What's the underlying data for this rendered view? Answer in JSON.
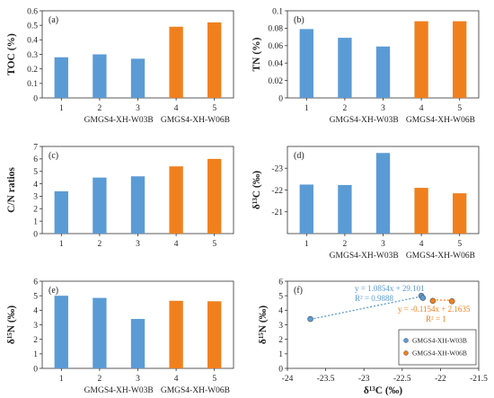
{
  "colors": {
    "blue": "#5b9bd5",
    "orange": "#f0801e",
    "axis": "#333333"
  },
  "chart_data": [
    {
      "type": "bar",
      "panel_label": "(a)",
      "ylabel": "TOC (%)",
      "categories": [
        "1",
        "2",
        "3",
        "4",
        "5"
      ],
      "values": [
        0.28,
        0.3,
        0.27,
        0.49,
        0.52
      ],
      "ylim": [
        0,
        0.6
      ],
      "yticks": [
        "0",
        "0.1",
        "0.2",
        "0.3",
        "0.4",
        "0.5",
        "0.6"
      ],
      "ytick_values": [
        0,
        0.1,
        0.2,
        0.3,
        0.4,
        0.5,
        0.6
      ],
      "bar_colors": [
        "blue",
        "blue",
        "blue",
        "orange",
        "orange"
      ],
      "group_labels": [
        "GMGS4-XH-W03B",
        "GMGS4-XH-W06B"
      ],
      "grid": false
    },
    {
      "type": "bar",
      "panel_label": "(b)",
      "ylabel": "TN (%)",
      "categories": [
        "1",
        "2",
        "3",
        "4",
        "5"
      ],
      "values": [
        0.079,
        0.069,
        0.059,
        0.088,
        0.088
      ],
      "ylim": [
        0,
        0.1
      ],
      "yticks": [
        "0",
        "0.02",
        "0.04",
        "0.06",
        "0.08",
        "0.1"
      ],
      "ytick_values": [
        0,
        0.02,
        0.04,
        0.06,
        0.08,
        0.1
      ],
      "bar_colors": [
        "blue",
        "blue",
        "blue",
        "orange",
        "orange"
      ],
      "group_labels": [
        "GMGS4-XH-W03B",
        "GMGS4-XH-W06B"
      ],
      "grid": false
    },
    {
      "type": "bar",
      "panel_label": "(c)",
      "ylabel": "C/N ratios",
      "categories": [
        "1",
        "2",
        "3",
        "4",
        "5"
      ],
      "values": [
        3.4,
        4.5,
        4.6,
        5.4,
        6.0
      ],
      "ylim": [
        0,
        7
      ],
      "yticks": [
        "0",
        "1",
        "2",
        "3",
        "4",
        "5",
        "6",
        "7"
      ],
      "ytick_values": [
        0,
        1,
        2,
        3,
        4,
        5,
        6,
        7
      ],
      "bar_colors": [
        "blue",
        "blue",
        "blue",
        "orange",
        "orange"
      ],
      "group_labels": [],
      "grid": false
    },
    {
      "type": "bar",
      "panel_label": "(d)",
      "ylabel": "δ¹³C (‰)",
      "categories": [
        "1",
        "2",
        "3",
        "4",
        "5"
      ],
      "values": [
        -22.25,
        -22.23,
        -23.7,
        -22.1,
        -21.85
      ],
      "ylim": [
        -20,
        -24
      ],
      "inverted_axis": true,
      "yticks": [
        "-23",
        "-22",
        "-21"
      ],
      "ytick_values": [
        -23,
        -22,
        -21
      ],
      "bar_colors": [
        "blue",
        "blue",
        "blue",
        "orange",
        "orange"
      ],
      "group_labels": [
        "GMGS4-XH-W03B",
        "GMGS4-XH-W06B"
      ],
      "grid": false
    },
    {
      "type": "bar",
      "panel_label": "(e)",
      "ylabel": "δ¹⁵N (‰)",
      "categories": [
        "1",
        "2",
        "3",
        "4",
        "5"
      ],
      "values": [
        5.0,
        4.85,
        3.4,
        4.65,
        4.62
      ],
      "ylim": [
        0,
        6
      ],
      "yticks": [
        "0",
        "1",
        "2",
        "3",
        "4",
        "5",
        "6"
      ],
      "ytick_values": [
        0,
        1,
        2,
        3,
        4,
        5,
        6
      ],
      "bar_colors": [
        "blue",
        "blue",
        "blue",
        "orange",
        "orange"
      ],
      "group_labels": [
        "GMGS4-XH-W03B",
        "GMGS4-XH-W06B"
      ],
      "grid": false
    },
    {
      "type": "scatter",
      "panel_label": "(f)",
      "xlabel": "δ¹³C (‰)",
      "ylabel": "δ¹⁵N (‰)",
      "xlim": [
        -24,
        -21.5
      ],
      "ylim": [
        0,
        6
      ],
      "xticks": [
        "-24",
        "-23.5",
        "-23",
        "-22.5",
        "-22",
        "-21.5"
      ],
      "xtick_values": [
        -24,
        -23.5,
        -23,
        -22.5,
        -22,
        -21.5
      ],
      "yticks": [
        "0",
        "1",
        "2",
        "3",
        "4",
        "5",
        "6"
      ],
      "ytick_values": [
        0,
        1,
        2,
        3,
        4,
        5,
        6
      ],
      "series": [
        {
          "name": "GMGS4-XH-W03B",
          "color": "blue",
          "x": [
            -22.25,
            -22.23,
            -23.7
          ],
          "y": [
            5.0,
            4.85,
            3.4
          ],
          "trendline": {
            "equation": "y = 1.0854x + 29.101",
            "r2": "R² = 0.9888",
            "slope": 1.0854,
            "intercept": 29.101
          }
        },
        {
          "name": "GMGS4-XH-W06B",
          "color": "orange",
          "x": [
            -22.1,
            -21.85
          ],
          "y": [
            4.65,
            4.62
          ],
          "trendline": {
            "equation": "y = -0.1154x + 2.1635",
            "r2": "R² = 1",
            "slope": -0.1154,
            "intercept": 2.1635
          }
        }
      ],
      "legend_position": "bottom-right",
      "grid": false
    }
  ]
}
